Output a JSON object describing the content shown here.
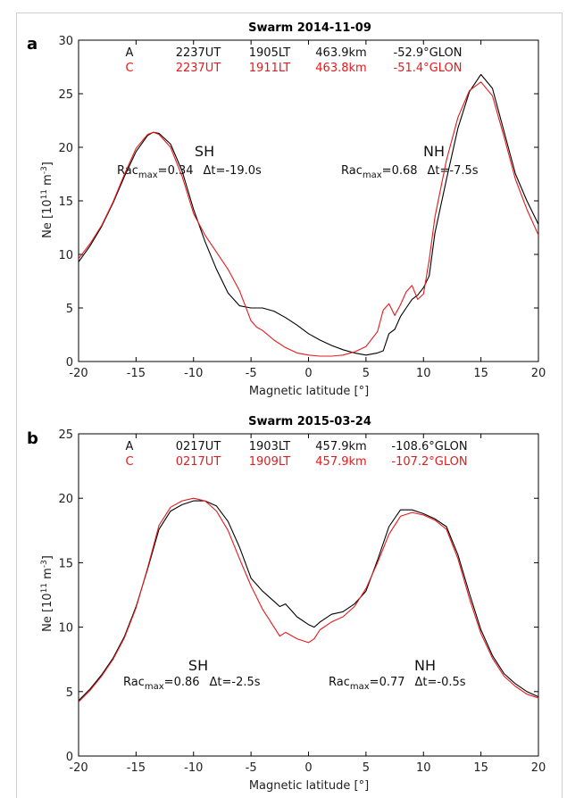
{
  "chart_data": [
    {
      "type": "line",
      "panel_letter": "a",
      "title": "Swarm   2014-11-09",
      "xlabel": "Magnetic latitude [°]",
      "ylabel": "Ne [10",
      "ylabel_sup1": "11",
      "ylabel_mid": " m",
      "ylabel_sup2": "-3",
      "ylabel_end": "]",
      "xlim": [
        -20,
        20
      ],
      "ylim": [
        0,
        30
      ],
      "xticks": [
        -20,
        -15,
        -10,
        -5,
        0,
        5,
        10,
        15,
        20
      ],
      "yticks": [
        0,
        5,
        10,
        15,
        20,
        25,
        30
      ],
      "grid": false,
      "info_lines": [
        {
          "label": "A",
          "ut": "2237UT",
          "lt": "1905LT",
          "alt": "463.9km",
          "glon": "-52.9°GLON",
          "color": "#000000"
        },
        {
          "label": "C",
          "ut": "2237UT",
          "lt": "1911LT",
          "alt": "463.8km",
          "glon": "-51.4°GLON",
          "color": "#e41a1c"
        }
      ],
      "sh_label": "SH",
      "nh_label": "NH",
      "sh_stats": {
        "pre": "Rac",
        "sub": "max",
        "val": "=0.34",
        "dt": "Δt=-19.0s"
      },
      "nh_stats": {
        "pre": "Rac",
        "sub": "max",
        "val": "=0.68",
        "dt": "Δt=-7.5s"
      },
      "series": [
        {
          "color": "#000000",
          "x": [
            -20,
            -19,
            -18,
            -17,
            -16,
            -15,
            -14,
            -13.5,
            -13,
            -12,
            -11,
            -10,
            -9,
            -8,
            -7,
            -6,
            -5,
            -4.5,
            -4,
            -3,
            -2,
            -1,
            0,
            1,
            2,
            3,
            4,
            5,
            6,
            6.5,
            7,
            7.5,
            8,
            8.5,
            9,
            9.5,
            10,
            10.5,
            11,
            12,
            13,
            14,
            15,
            16,
            17,
            18,
            19,
            20
          ],
          "y": [
            9.3,
            10.8,
            12.6,
            14.8,
            17.3,
            19.6,
            21.1,
            21.4,
            21.3,
            20.3,
            17.8,
            14.2,
            11.2,
            8.6,
            6.4,
            5.2,
            5.0,
            5.0,
            5.0,
            4.7,
            4.1,
            3.4,
            2.6,
            2.0,
            1.5,
            1.1,
            0.8,
            0.6,
            0.8,
            1.0,
            2.6,
            3.0,
            4.2,
            5.0,
            5.8,
            6.2,
            6.9,
            8.0,
            12.0,
            17.0,
            21.8,
            25.2,
            26.8,
            25.5,
            21.5,
            17.5,
            15.0,
            12.8
          ]
        },
        {
          "color": "#e41a1c",
          "x": [
            -20,
            -19,
            -18,
            -17,
            -16,
            -15,
            -14,
            -13.5,
            -13,
            -12,
            -11,
            -10,
            -9,
            -8,
            -7,
            -6,
            -5,
            -4.5,
            -4,
            -3,
            -2,
            -1,
            0,
            1,
            2,
            3,
            4,
            5,
            6,
            6.5,
            7,
            7.5,
            8,
            8.5,
            9,
            9.5,
            10,
            10.5,
            11,
            12,
            13,
            14,
            15,
            16,
            17,
            18,
            19,
            20
          ],
          "y": [
            9.6,
            11.0,
            12.7,
            14.9,
            17.5,
            19.9,
            21.2,
            21.4,
            21.2,
            20.0,
            17.3,
            13.8,
            11.8,
            10.2,
            8.6,
            6.6,
            3.8,
            3.2,
            2.9,
            2.0,
            1.3,
            0.8,
            0.6,
            0.5,
            0.5,
            0.6,
            0.9,
            1.4,
            2.8,
            4.8,
            5.4,
            4.3,
            5.3,
            6.5,
            7.1,
            5.8,
            6.3,
            9.5,
            13.5,
            18.8,
            22.8,
            25.3,
            26.1,
            24.8,
            21.0,
            17.0,
            14.2,
            11.8
          ]
        }
      ]
    },
    {
      "type": "line",
      "panel_letter": "b",
      "title": "Swarm   2015-03-24",
      "xlabel": "Magnetic latitude [°]",
      "ylabel": "Ne [10",
      "ylabel_sup1": "11",
      "ylabel_mid": " m",
      "ylabel_sup2": "-3",
      "ylabel_end": "]",
      "xlim": [
        -20,
        20
      ],
      "ylim": [
        0,
        25
      ],
      "xticks": [
        -20,
        -15,
        -10,
        -5,
        0,
        5,
        10,
        15,
        20
      ],
      "yticks": [
        0,
        5,
        10,
        15,
        20,
        25
      ],
      "grid": false,
      "info_lines": [
        {
          "label": "A",
          "ut": "0217UT",
          "lt": "1903LT",
          "alt": "457.9km",
          "glon": "-108.6°GLON",
          "color": "#000000"
        },
        {
          "label": "C",
          "ut": "0217UT",
          "lt": "1909LT",
          "alt": "457.9km",
          "glon": "-107.2°GLON",
          "color": "#e41a1c"
        }
      ],
      "sh_label": "SH",
      "nh_label": "NH",
      "sh_stats": {
        "pre": "Rac",
        "sub": "max",
        "val": "=0.86",
        "dt": "Δt=-2.5s"
      },
      "nh_stats": {
        "pre": "Rac",
        "sub": "max",
        "val": "=0.77",
        "dt": "Δt=-0.5s"
      },
      "series": [
        {
          "color": "#000000",
          "x": [
            -20,
            -19,
            -18,
            -17,
            -16,
            -15,
            -14,
            -13,
            -12,
            -11,
            -10,
            -9,
            -8,
            -7,
            -6,
            -5,
            -4,
            -3,
            -2.5,
            -2,
            -1,
            0,
            0.5,
            1,
            2,
            3,
            4,
            5,
            6,
            7,
            8,
            9,
            10,
            11,
            12,
            13,
            14,
            15,
            16,
            17,
            18,
            19,
            20
          ],
          "y": [
            4.3,
            5.2,
            6.3,
            7.6,
            9.3,
            11.6,
            14.5,
            17.6,
            19.0,
            19.5,
            19.8,
            19.8,
            19.4,
            18.2,
            16.2,
            13.8,
            12.8,
            12.0,
            11.6,
            11.8,
            10.8,
            10.2,
            10.0,
            10.4,
            11.0,
            11.2,
            11.8,
            12.8,
            15.2,
            17.8,
            19.1,
            19.1,
            18.8,
            18.4,
            17.8,
            15.6,
            12.6,
            9.8,
            7.8,
            6.4,
            5.6,
            5.0,
            4.6
          ]
        },
        {
          "color": "#e41a1c",
          "x": [
            -20,
            -19,
            -18,
            -17,
            -16,
            -15,
            -14,
            -13,
            -12,
            -11,
            -10,
            -9,
            -8,
            -7,
            -6,
            -5,
            -4,
            -3,
            -2.5,
            -2,
            -1,
            0,
            0.5,
            1,
            2,
            3,
            4,
            5,
            6,
            7,
            8,
            9,
            10,
            11,
            12,
            13,
            14,
            15,
            16,
            17,
            18,
            19,
            20
          ],
          "y": [
            4.2,
            5.1,
            6.2,
            7.5,
            9.2,
            11.5,
            14.6,
            17.9,
            19.3,
            19.8,
            20.0,
            19.8,
            19.0,
            17.5,
            15.3,
            13.2,
            11.4,
            10.0,
            9.3,
            9.6,
            9.1,
            8.8,
            9.1,
            9.8,
            10.4,
            10.8,
            11.6,
            13.0,
            15.0,
            17.2,
            18.6,
            18.9,
            18.7,
            18.3,
            17.6,
            15.3,
            12.2,
            9.5,
            7.6,
            6.2,
            5.4,
            4.8,
            4.5
          ]
        }
      ]
    }
  ]
}
